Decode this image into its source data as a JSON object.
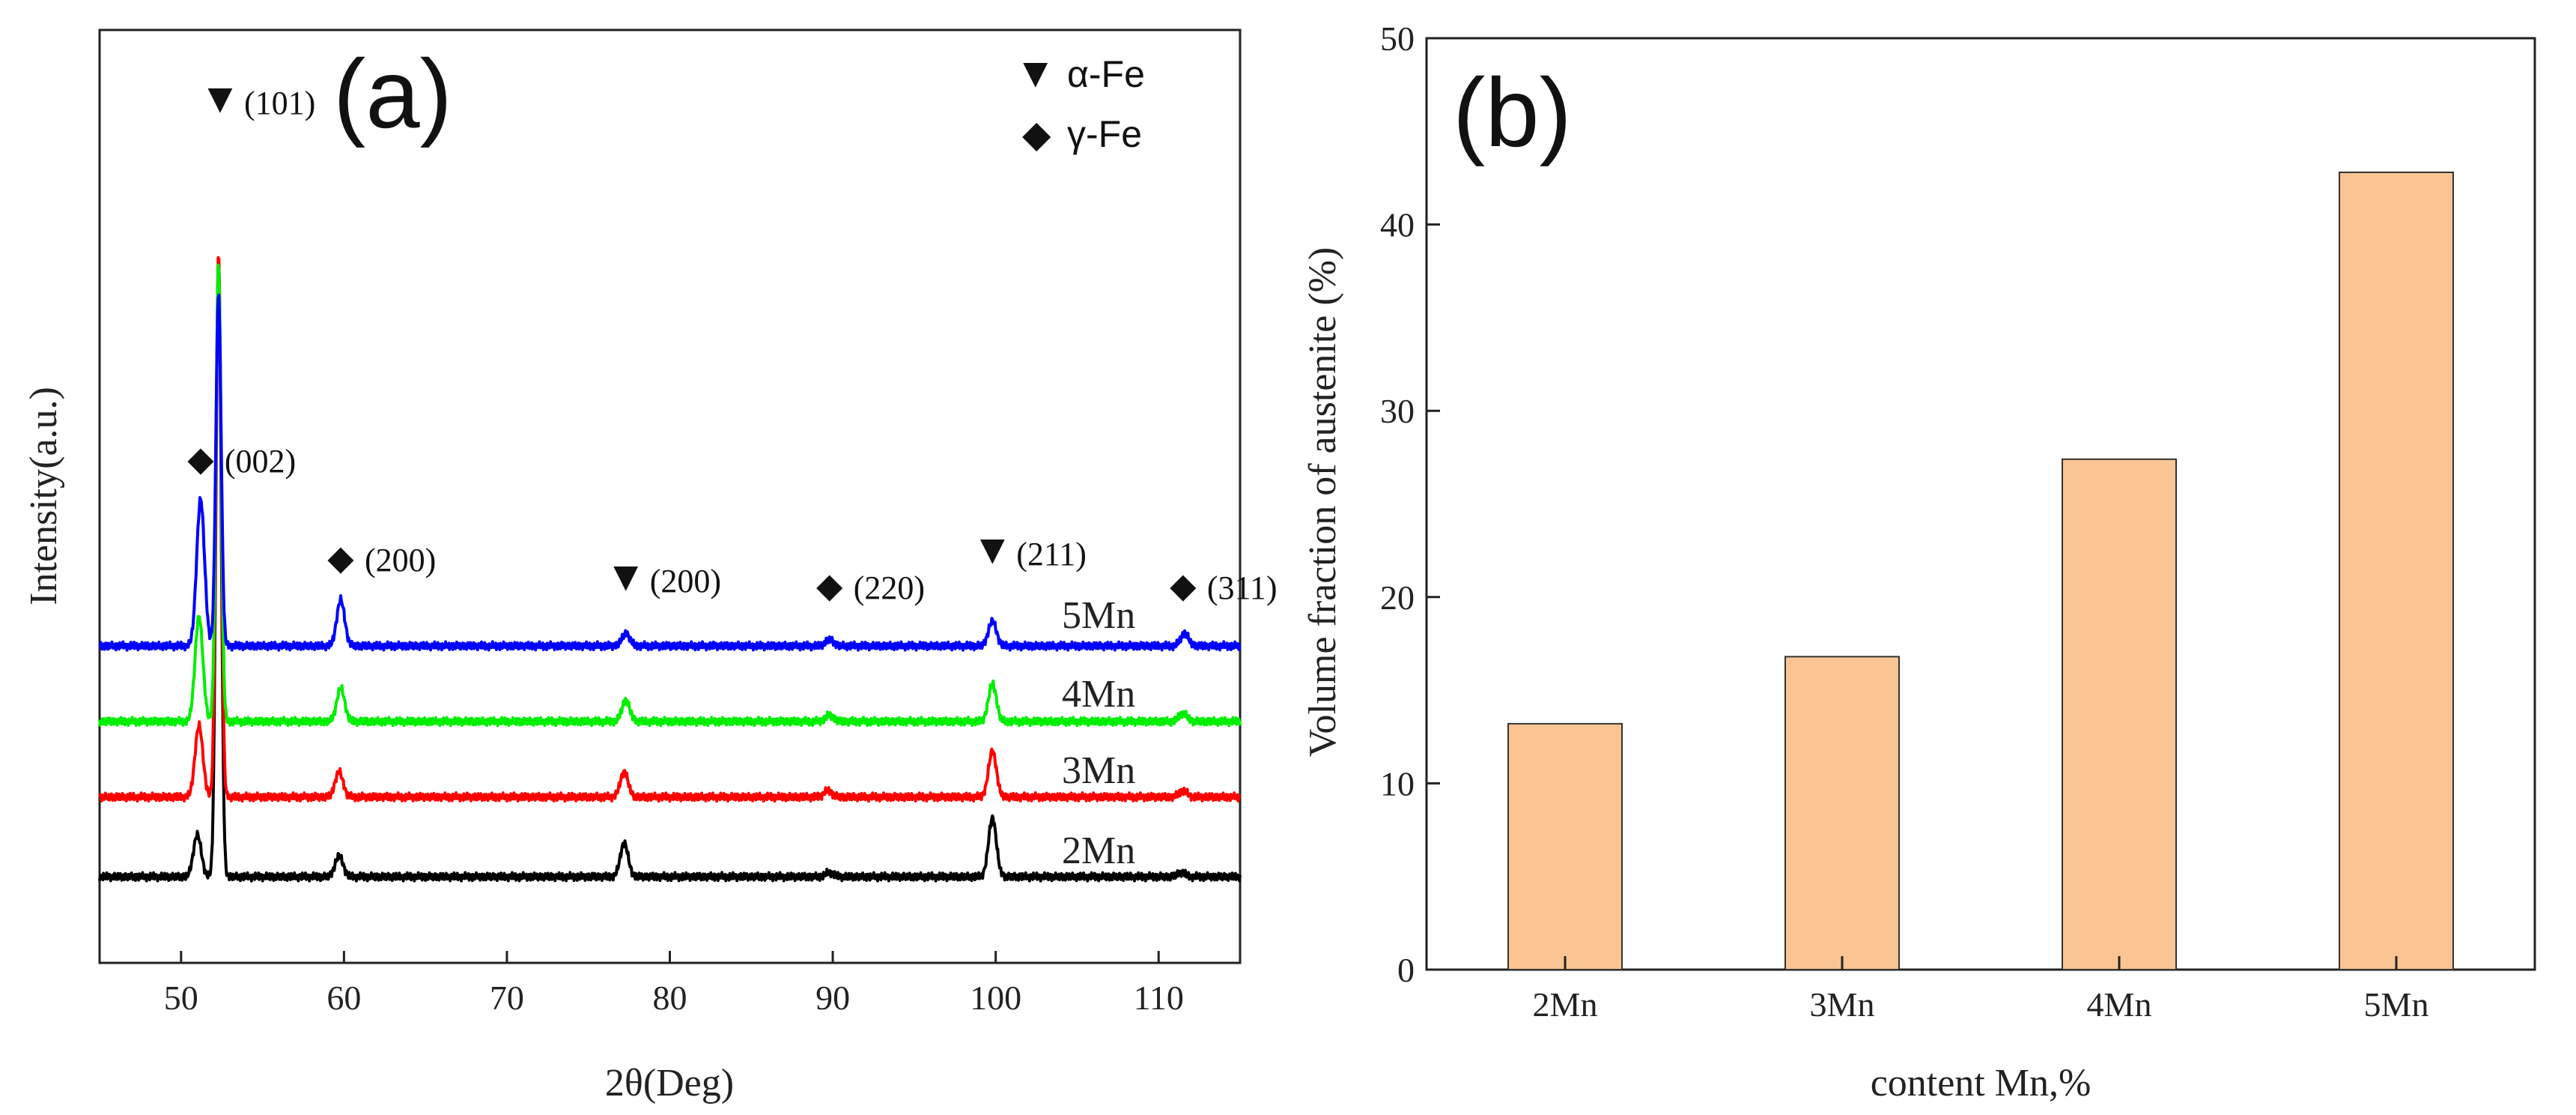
{
  "chart_data": [
    {
      "panel_label": "(a)",
      "type": "line",
      "xlabel": "2θ(Deg)",
      "ylabel": "Intensity(a.u.)",
      "xlim": [
        45,
        115
      ],
      "xticks": [
        "50",
        "60",
        "70",
        "80",
        "90",
        "100",
        "110"
      ],
      "xtick_values": [
        50,
        60,
        70,
        80,
        90,
        100,
        110
      ],
      "yticks_shown": false,
      "legend": [
        {
          "symbol": "▼",
          "label": "α-Fe"
        },
        {
          "symbol": "◆",
          "label": "γ-Fe"
        }
      ],
      "peak_annotations": [
        {
          "symbol": "▼",
          "label": "(101)",
          "x": 52.4
        },
        {
          "symbol": "◆",
          "label": "(002)",
          "x": 51.2
        },
        {
          "symbol": "◆",
          "label": "(200)",
          "x": 59.8
        },
        {
          "symbol": "▼",
          "label": "(200)",
          "x": 77.3
        },
        {
          "symbol": "◆",
          "label": "(220)",
          "x": 89.8
        },
        {
          "symbol": "▼",
          "label": "(211)",
          "x": 99.8
        },
        {
          "symbol": "◆",
          "label": "(311)",
          "x": 111.5
        }
      ],
      "series": [
        {
          "name": "2Mn",
          "color": "#000000",
          "baseline": 0.0,
          "peaks": [
            [
              51.0,
              0.1
            ],
            [
              52.3,
              1.48
            ],
            [
              59.7,
              0.05
            ],
            [
              77.2,
              0.08
            ],
            [
              89.8,
              0.01
            ],
            [
              99.8,
              0.14
            ],
            [
              111.4,
              0.01
            ]
          ]
        },
        {
          "name": "3Mn",
          "color": "#ff0000",
          "baseline": 0.19,
          "peaks": [
            [
              51.1,
              0.17
            ],
            [
              52.3,
              1.29
            ],
            [
              59.7,
              0.06
            ],
            [
              77.2,
              0.06
            ],
            [
              89.7,
              0.015
            ],
            [
              99.8,
              0.11
            ],
            [
              111.5,
              0.015
            ]
          ]
        },
        {
          "name": "4Mn",
          "color": "#00ee00",
          "baseline": 0.37,
          "peaks": [
            [
              51.1,
              0.25
            ],
            [
              52.3,
              1.09
            ],
            [
              59.8,
              0.08
            ],
            [
              77.3,
              0.05
            ],
            [
              89.8,
              0.015
            ],
            [
              99.8,
              0.09
            ],
            [
              111.5,
              0.02
            ]
          ]
        },
        {
          "name": "5Mn",
          "color": "#0000ff",
          "baseline": 0.55,
          "peaks": [
            [
              51.2,
              0.35
            ],
            [
              52.3,
              0.84
            ],
            [
              59.8,
              0.11
            ],
            [
              77.3,
              0.03
            ],
            [
              89.8,
              0.015
            ],
            [
              99.8,
              0.06
            ],
            [
              111.6,
              0.03
            ]
          ]
        }
      ],
      "series_labels": [
        "5Mn",
        "4Mn",
        "3Mn",
        "2Mn"
      ]
    },
    {
      "panel_label": "(b)",
      "type": "bar",
      "title": "",
      "xlabel": "content Mn,%",
      "ylabel": "Volume fraction of austenite (%)",
      "categories": [
        "2Mn",
        "3Mn",
        "4Mn",
        "5Mn"
      ],
      "values": [
        13.2,
        16.8,
        27.4,
        42.8
      ],
      "ylim": [
        0,
        50
      ],
      "yticks": [
        "0",
        "10",
        "20",
        "30",
        "40",
        "50"
      ],
      "ytick_values": [
        0,
        10,
        20,
        30,
        40,
        50
      ],
      "bar_color": "#fbc593",
      "bar_edge_color": "#333333",
      "grid": false
    }
  ]
}
